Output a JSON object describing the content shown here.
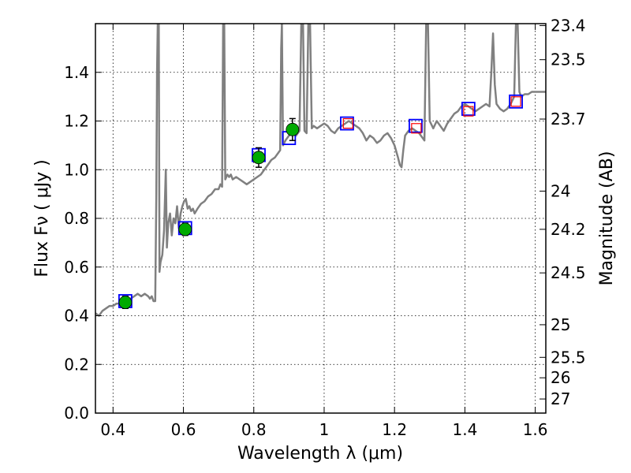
{
  "chart_data": {
    "type": "scatter",
    "title": "",
    "xlabel": "Wavelength  λ (μm)",
    "ylabel": "Flux  Fν  ( μJy )",
    "y2label": "Magnitude (AB)",
    "xlim": [
      0.35,
      1.63
    ],
    "ylim": [
      0,
      1.6
    ],
    "grid": true,
    "xticks": [
      {
        "value": 0.4,
        "label": "0.4"
      },
      {
        "value": 0.6,
        "label": "0.6"
      },
      {
        "value": 0.8,
        "label": "0.8"
      },
      {
        "value": 1.0,
        "label": "1"
      },
      {
        "value": 1.2,
        "label": "1.2"
      },
      {
        "value": 1.4,
        "label": "1.4"
      },
      {
        "value": 1.6,
        "label": "1.6"
      }
    ],
    "yticks": [
      {
        "value": 0.0,
        "label": "0.0"
      },
      {
        "value": 0.2,
        "label": "0.2"
      },
      {
        "value": 0.4,
        "label": "0.4"
      },
      {
        "value": 0.6,
        "label": "0.6"
      },
      {
        "value": 0.8,
        "label": "0.8"
      },
      {
        "value": 1.0,
        "label": "1.0"
      },
      {
        "value": 1.2,
        "label": "1.2"
      },
      {
        "value": 1.4,
        "label": "1.4"
      }
    ],
    "y2ticks": [
      {
        "flux": 1.592,
        "label": "23.4"
      },
      {
        "flux": 1.452,
        "label": "23.5"
      },
      {
        "flux": 1.208,
        "label": "23.7"
      },
      {
        "flux": 0.912,
        "label": "24"
      },
      {
        "flux": 0.755,
        "label": "24.2"
      },
      {
        "flux": 0.576,
        "label": "24.5"
      },
      {
        "flux": 0.363,
        "label": "25"
      },
      {
        "flux": 0.229,
        "label": "25.5"
      },
      {
        "flux": 0.145,
        "label": "26"
      },
      {
        "flux": 0.058,
        "label": "27"
      }
    ],
    "series": [
      {
        "kind": "model-spectrum",
        "color": "#808080",
        "points": [
          [
            0.35,
            0.41
          ],
          [
            0.36,
            0.4
          ],
          [
            0.37,
            0.42
          ],
          [
            0.38,
            0.43
          ],
          [
            0.39,
            0.44
          ],
          [
            0.4,
            0.44
          ],
          [
            0.41,
            0.45
          ],
          [
            0.42,
            0.45
          ],
          [
            0.43,
            0.46
          ],
          [
            0.44,
            0.46
          ],
          [
            0.45,
            0.47
          ],
          [
            0.46,
            0.48
          ],
          [
            0.47,
            0.49
          ],
          [
            0.48,
            0.48
          ],
          [
            0.49,
            0.49
          ],
          [
            0.5,
            0.48
          ],
          [
            0.505,
            0.47
          ],
          [
            0.51,
            0.48
          ],
          [
            0.515,
            0.46
          ],
          [
            0.52,
            0.46
          ],
          [
            0.523,
            0.9
          ],
          [
            0.525,
            1.4
          ],
          [
            0.527,
            1.6
          ],
          [
            0.53,
            1.6
          ],
          [
            0.532,
            0.58
          ],
          [
            0.535,
            0.62
          ],
          [
            0.54,
            0.65
          ],
          [
            0.545,
            0.75
          ],
          [
            0.55,
            1.0
          ],
          [
            0.553,
            0.68
          ],
          [
            0.557,
            0.78
          ],
          [
            0.562,
            0.82
          ],
          [
            0.567,
            0.73
          ],
          [
            0.572,
            0.8
          ],
          [
            0.577,
            0.78
          ],
          [
            0.582,
            0.85
          ],
          [
            0.587,
            0.76
          ],
          [
            0.592,
            0.82
          ],
          [
            0.597,
            0.85
          ],
          [
            0.602,
            0.87
          ],
          [
            0.607,
            0.88
          ],
          [
            0.612,
            0.84
          ],
          [
            0.617,
            0.85
          ],
          [
            0.622,
            0.83
          ],
          [
            0.627,
            0.84
          ],
          [
            0.632,
            0.82
          ],
          [
            0.64,
            0.84
          ],
          [
            0.65,
            0.86
          ],
          [
            0.66,
            0.87
          ],
          [
            0.67,
            0.89
          ],
          [
            0.68,
            0.9
          ],
          [
            0.69,
            0.92
          ],
          [
            0.7,
            0.92
          ],
          [
            0.705,
            0.94
          ],
          [
            0.71,
            0.93
          ],
          [
            0.713,
            1.6
          ],
          [
            0.716,
            1.6
          ],
          [
            0.719,
            0.96
          ],
          [
            0.725,
            0.98
          ],
          [
            0.73,
            0.97
          ],
          [
            0.735,
            0.98
          ],
          [
            0.74,
            0.96
          ],
          [
            0.75,
            0.97
          ],
          [
            0.76,
            0.96
          ],
          [
            0.77,
            0.95
          ],
          [
            0.78,
            0.94
          ],
          [
            0.79,
            0.95
          ],
          [
            0.8,
            0.96
          ],
          [
            0.81,
            0.97
          ],
          [
            0.82,
            0.98
          ],
          [
            0.83,
            1.0
          ],
          [
            0.84,
            1.02
          ],
          [
            0.85,
            1.04
          ],
          [
            0.86,
            1.05
          ],
          [
            0.87,
            1.07
          ],
          [
            0.875,
            1.08
          ],
          [
            0.878,
            1.5
          ],
          [
            0.88,
            1.6
          ],
          [
            0.883,
            1.1
          ],
          [
            0.89,
            1.12
          ],
          [
            0.9,
            1.14
          ],
          [
            0.91,
            1.15
          ],
          [
            0.92,
            1.14
          ],
          [
            0.93,
            1.16
          ],
          [
            0.935,
            1.6
          ],
          [
            0.94,
            1.6
          ],
          [
            0.944,
            1.16
          ],
          [
            0.95,
            1.15
          ],
          [
            0.955,
            1.6
          ],
          [
            0.96,
            1.6
          ],
          [
            0.965,
            1.17
          ],
          [
            0.97,
            1.18
          ],
          [
            0.98,
            1.17
          ],
          [
            0.99,
            1.18
          ],
          [
            1.0,
            1.19
          ],
          [
            1.01,
            1.18
          ],
          [
            1.02,
            1.16
          ],
          [
            1.03,
            1.15
          ],
          [
            1.04,
            1.17
          ],
          [
            1.05,
            1.18
          ],
          [
            1.06,
            1.19
          ],
          [
            1.07,
            1.2
          ],
          [
            1.08,
            1.19
          ],
          [
            1.09,
            1.18
          ],
          [
            1.1,
            1.17
          ],
          [
            1.11,
            1.15
          ],
          [
            1.12,
            1.12
          ],
          [
            1.13,
            1.14
          ],
          [
            1.14,
            1.13
          ],
          [
            1.15,
            1.11
          ],
          [
            1.16,
            1.12
          ],
          [
            1.17,
            1.14
          ],
          [
            1.18,
            1.15
          ],
          [
            1.19,
            1.13
          ],
          [
            1.2,
            1.1
          ],
          [
            1.21,
            1.05
          ],
          [
            1.215,
            1.02
          ],
          [
            1.22,
            1.01
          ],
          [
            1.225,
            1.08
          ],
          [
            1.23,
            1.14
          ],
          [
            1.24,
            1.16
          ],
          [
            1.25,
            1.17
          ],
          [
            1.26,
            1.16
          ],
          [
            1.27,
            1.15
          ],
          [
            1.275,
            1.14
          ],
          [
            1.28,
            1.13
          ],
          [
            1.285,
            1.12
          ],
          [
            1.29,
            1.6
          ],
          [
            1.295,
            1.6
          ],
          [
            1.3,
            1.2
          ],
          [
            1.31,
            1.17
          ],
          [
            1.32,
            1.2
          ],
          [
            1.33,
            1.18
          ],
          [
            1.34,
            1.16
          ],
          [
            1.35,
            1.19
          ],
          [
            1.36,
            1.21
          ],
          [
            1.37,
            1.23
          ],
          [
            1.38,
            1.24
          ],
          [
            1.39,
            1.26
          ],
          [
            1.4,
            1.27
          ],
          [
            1.41,
            1.26
          ],
          [
            1.42,
            1.25
          ],
          [
            1.43,
            1.24
          ],
          [
            1.44,
            1.25
          ],
          [
            1.45,
            1.26
          ],
          [
            1.46,
            1.27
          ],
          [
            1.47,
            1.26
          ],
          [
            1.475,
            1.4
          ],
          [
            1.48,
            1.56
          ],
          [
            1.485,
            1.35
          ],
          [
            1.49,
            1.27
          ],
          [
            1.5,
            1.25
          ],
          [
            1.51,
            1.24
          ],
          [
            1.52,
            1.25
          ],
          [
            1.53,
            1.27
          ],
          [
            1.54,
            1.3
          ],
          [
            1.545,
            1.6
          ],
          [
            1.55,
            1.6
          ],
          [
            1.555,
            1.32
          ],
          [
            1.56,
            1.3
          ],
          [
            1.57,
            1.31
          ],
          [
            1.58,
            1.31
          ],
          [
            1.59,
            1.32
          ],
          [
            1.6,
            1.32
          ],
          [
            1.62,
            1.32
          ],
          [
            1.63,
            1.32
          ]
        ]
      },
      {
        "kind": "model-photometry",
        "marker": "square",
        "color": "#0000ff",
        "points": [
          [
            0.435,
            0.46
          ],
          [
            0.605,
            0.76
          ],
          [
            0.814,
            1.06
          ],
          [
            0.9,
            1.13
          ],
          [
            1.065,
            1.19
          ],
          [
            1.26,
            1.18
          ],
          [
            1.41,
            1.25
          ],
          [
            1.545,
            1.28
          ]
        ]
      },
      {
        "kind": "model-photometry",
        "marker": "square",
        "color": "#ff0000",
        "points": [
          [
            1.068,
            1.19
          ],
          [
            1.262,
            1.17
          ],
          [
            1.41,
            1.24
          ],
          [
            1.545,
            1.28
          ]
        ]
      },
      {
        "kind": "observed",
        "marker": "circle",
        "color": "#00aa00",
        "points": [
          [
            0.435,
            0.455
          ],
          [
            0.605,
            0.755
          ],
          [
            0.814,
            1.05
          ],
          [
            0.91,
            1.165
          ]
        ],
        "errors": [
          0.025,
          0.025,
          0.04,
          0.045
        ]
      }
    ]
  }
}
